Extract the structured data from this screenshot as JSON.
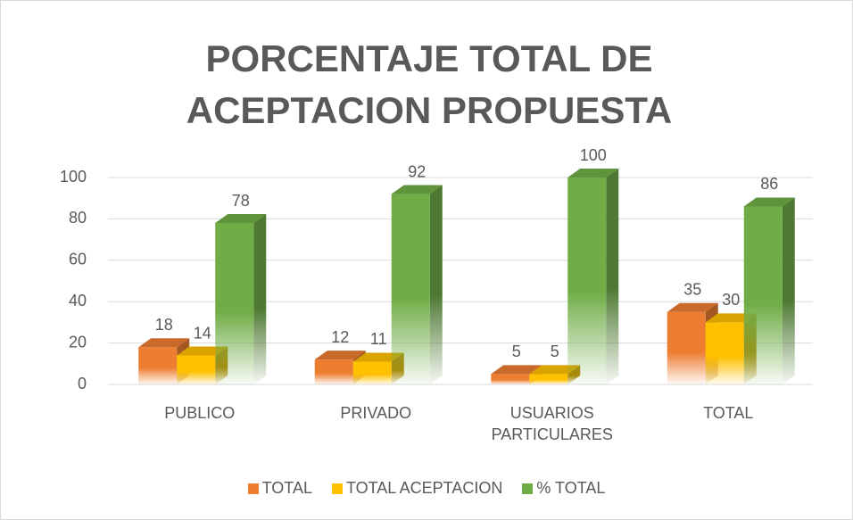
{
  "chart_data": {
    "type": "bar3d",
    "title": "PORCENTAJE TOTAL DE ACEPTACION PROPUESTA",
    "categories": [
      "PUBLICO",
      "PRIVADO",
      "USUARIOS PARTICULARES",
      "TOTAL"
    ],
    "series": [
      {
        "name": "TOTAL",
        "color": "#ed7d31",
        "values": [
          18,
          12,
          5,
          35
        ]
      },
      {
        "name": "TOTAL ACEPTACION",
        "color": "#ffc000",
        "values": [
          14,
          11,
          5,
          30
        ]
      },
      {
        "name": "% TOTAL",
        "color": "#70ad47",
        "values": [
          78,
          92,
          100,
          86
        ]
      }
    ],
    "ylim": [
      0,
      100
    ],
    "yticks": [
      0,
      20,
      40,
      60,
      80,
      100
    ],
    "grid": true,
    "legend": "bottom"
  }
}
